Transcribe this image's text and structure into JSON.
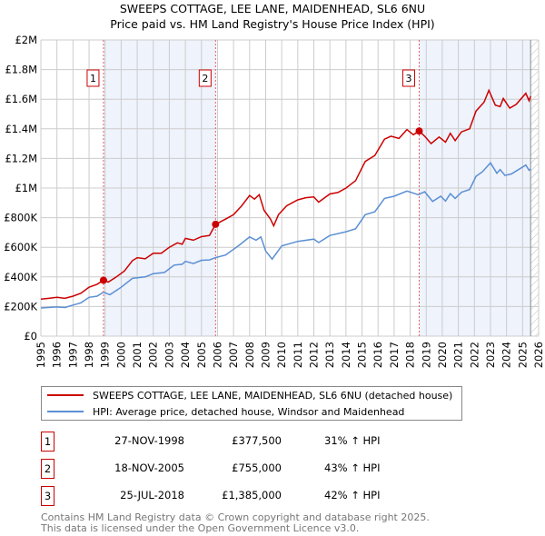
{
  "title_line1": "SWEEPS COTTAGE, LEE LANE, MAIDENHEAD, SL6 6NU",
  "title_line2": "Price paid vs. HM Land Registry's House Price Index (HPI)",
  "chart_data": {
    "type": "line",
    "ylim": [
      0,
      2000000
    ],
    "xlim": [
      1995,
      2026
    ],
    "yticks": [
      {
        "v": 0,
        "l": "£0"
      },
      {
        "v": 200000,
        "l": "£200K"
      },
      {
        "v": 400000,
        "l": "£400K"
      },
      {
        "v": 600000,
        "l": "£600K"
      },
      {
        "v": 800000,
        "l": "£800K"
      },
      {
        "v": 1000000,
        "l": "£1M"
      },
      {
        "v": 1200000,
        "l": "£1.2M"
      },
      {
        "v": 1400000,
        "l": "£1.4M"
      },
      {
        "v": 1600000,
        "l": "£1.6M"
      },
      {
        "v": 1800000,
        "l": "£1.8M"
      },
      {
        "v": 2000000,
        "l": "£2M"
      }
    ],
    "xticks": [
      "1995",
      "1996",
      "1997",
      "1998",
      "1999",
      "2000",
      "2001",
      "2002",
      "2003",
      "2004",
      "2005",
      "2006",
      "2007",
      "2008",
      "2009",
      "2010",
      "2011",
      "2012",
      "2013",
      "2014",
      "2015",
      "2016",
      "2017",
      "2018",
      "2019",
      "2020",
      "2021",
      "2022",
      "2023",
      "2024",
      "2025",
      "2026"
    ],
    "grid": true,
    "colors": {
      "property": "#cc0000",
      "hpi": "#5b8fd4",
      "shade": "#eef3fc"
    },
    "shaded_ranges": [
      [
        1998.9,
        2005.88
      ],
      [
        2018.56,
        2025.5
      ]
    ],
    "hatched_from": 2025.5,
    "series": [
      {
        "name": "SWEEPS COTTAGE, LEE LANE, MAIDENHEAD, SL6 6NU (detached house)",
        "key": "property",
        "points": [
          [
            1995,
            250
          ],
          [
            1995.5,
            255
          ],
          [
            1996,
            262
          ],
          [
            1996.5,
            255
          ],
          [
            1997,
            270
          ],
          [
            1997.5,
            290
          ],
          [
            1998,
            330
          ],
          [
            1998.5,
            350
          ],
          [
            1998.9,
            377.5
          ],
          [
            1999.2,
            365
          ],
          [
            1999.7,
            400
          ],
          [
            2000.2,
            440
          ],
          [
            2000.7,
            510
          ],
          [
            2001,
            530
          ],
          [
            2001.5,
            522
          ],
          [
            2002,
            560
          ],
          [
            2002.5,
            560
          ],
          [
            2003,
            600
          ],
          [
            2003.5,
            630
          ],
          [
            2003.8,
            620
          ],
          [
            2004,
            660
          ],
          [
            2004.5,
            648
          ],
          [
            2005,
            672
          ],
          [
            2005.5,
            680
          ],
          [
            2005.88,
            755
          ],
          [
            2006.5,
            790
          ],
          [
            2007,
            820
          ],
          [
            2007.5,
            880
          ],
          [
            2008,
            950
          ],
          [
            2008.3,
            925
          ],
          [
            2008.6,
            955
          ],
          [
            2008.9,
            850
          ],
          [
            2009.3,
            790
          ],
          [
            2009.5,
            745
          ],
          [
            2009.8,
            820
          ],
          [
            2010.3,
            880
          ],
          [
            2011,
            920
          ],
          [
            2011.5,
            935
          ],
          [
            2012,
            940
          ],
          [
            2012.3,
            905
          ],
          [
            2013,
            960
          ],
          [
            2013.5,
            970
          ],
          [
            2014,
            1000
          ],
          [
            2014.6,
            1050
          ],
          [
            2015.2,
            1180
          ],
          [
            2015.8,
            1220
          ],
          [
            2016.4,
            1330
          ],
          [
            2016.8,
            1350
          ],
          [
            2017.3,
            1335
          ],
          [
            2017.8,
            1395
          ],
          [
            2018.2,
            1360
          ],
          [
            2018.56,
            1385
          ],
          [
            2018.9,
            1350
          ],
          [
            2019.3,
            1300
          ],
          [
            2019.8,
            1345
          ],
          [
            2020.2,
            1310
          ],
          [
            2020.5,
            1370
          ],
          [
            2020.8,
            1320
          ],
          [
            2021.2,
            1380
          ],
          [
            2021.7,
            1400
          ],
          [
            2022.1,
            1520
          ],
          [
            2022.6,
            1580
          ],
          [
            2022.9,
            1660
          ],
          [
            2023.3,
            1560
          ],
          [
            2023.6,
            1550
          ],
          [
            2023.8,
            1605
          ],
          [
            2024.2,
            1540
          ],
          [
            2024.6,
            1565
          ],
          [
            2025.2,
            1640
          ],
          [
            2025.4,
            1590
          ],
          [
            2025.5,
            1620
          ]
        ]
      },
      {
        "name": "HPI: Average price, detached house, Windsor and Maidenhead",
        "key": "hpi",
        "points": [
          [
            1995,
            190
          ],
          [
            1996,
            197
          ],
          [
            1996.5,
            193
          ],
          [
            1997,
            210
          ],
          [
            1997.5,
            225
          ],
          [
            1998,
            262
          ],
          [
            1998.5,
            270
          ],
          [
            1998.9,
            297
          ],
          [
            1999.3,
            280
          ],
          [
            2000,
            330
          ],
          [
            2000.7,
            390
          ],
          [
            2001.5,
            400
          ],
          [
            2002,
            422
          ],
          [
            2002.7,
            430
          ],
          [
            2003.3,
            480
          ],
          [
            2003.8,
            485
          ],
          [
            2004,
            505
          ],
          [
            2004.5,
            490
          ],
          [
            2005,
            512
          ],
          [
            2005.5,
            515
          ],
          [
            2005.88,
            530
          ],
          [
            2006.5,
            548
          ],
          [
            2007.3,
            610
          ],
          [
            2008,
            670
          ],
          [
            2008.4,
            648
          ],
          [
            2008.7,
            670
          ],
          [
            2009,
            575
          ],
          [
            2009.4,
            520
          ],
          [
            2010,
            610
          ],
          [
            2011,
            640
          ],
          [
            2012,
            655
          ],
          [
            2012.3,
            632
          ],
          [
            2013,
            680
          ],
          [
            2014,
            705
          ],
          [
            2014.6,
            725
          ],
          [
            2015.2,
            820
          ],
          [
            2015.8,
            840
          ],
          [
            2016.4,
            930
          ],
          [
            2017,
            945
          ],
          [
            2017.8,
            980
          ],
          [
            2018.5,
            955
          ],
          [
            2018.9,
            975
          ],
          [
            2019.4,
            910
          ],
          [
            2019.9,
            945
          ],
          [
            2020.2,
            912
          ],
          [
            2020.5,
            962
          ],
          [
            2020.8,
            930
          ],
          [
            2021.2,
            972
          ],
          [
            2021.7,
            990
          ],
          [
            2022.1,
            1080
          ],
          [
            2022.5,
            1110
          ],
          [
            2023,
            1170
          ],
          [
            2023.4,
            1100
          ],
          [
            2023.6,
            1125
          ],
          [
            2023.9,
            1085
          ],
          [
            2024.3,
            1095
          ],
          [
            2025.2,
            1155
          ],
          [
            2025.4,
            1120
          ],
          [
            2025.5,
            1130
          ]
        ]
      }
    ],
    "sales": [
      {
        "n": "1",
        "x": 1998.9,
        "y": 377.5
      },
      {
        "n": "2",
        "x": 2005.88,
        "y": 755
      },
      {
        "n": "3",
        "x": 2018.56,
        "y": 1385
      }
    ]
  },
  "legend": [
    {
      "label": "SWEEPS COTTAGE, LEE LANE, MAIDENHEAD, SL6 6NU (detached house)"
    },
    {
      "label": "HPI: Average price, detached house, Windsor and Maidenhead"
    }
  ],
  "transactions": [
    {
      "n": "1",
      "date": "27-NOV-1998",
      "price": "£377,500",
      "hpi": "31% ↑ HPI"
    },
    {
      "n": "2",
      "date": "18-NOV-2005",
      "price": "£755,000",
      "hpi": "43% ↑ HPI"
    },
    {
      "n": "3",
      "date": "25-JUL-2018",
      "price": "£1,385,000",
      "hpi": "42% ↑ HPI"
    }
  ],
  "footer_line1": "Contains HM Land Registry data © Crown copyright and database right 2025.",
  "footer_line2": "This data is licensed under the Open Government Licence v3.0."
}
